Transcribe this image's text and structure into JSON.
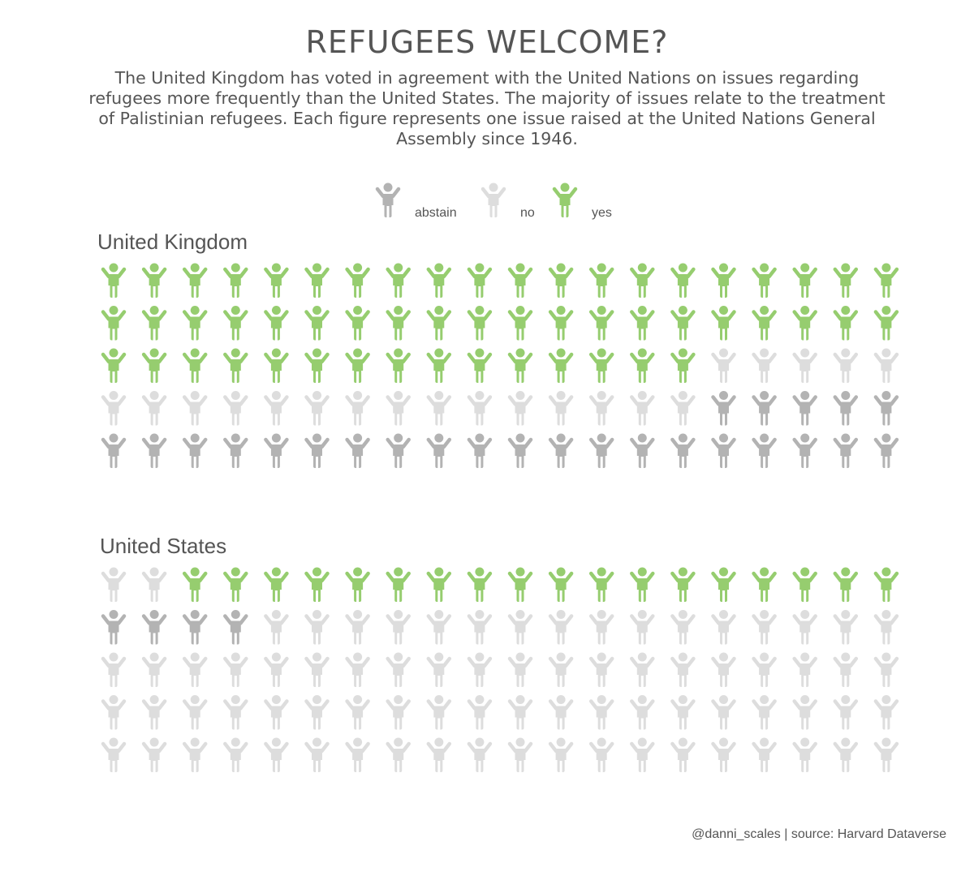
{
  "title": "REFUGEES WELCOME?",
  "subtitle": "The United Kingdom has voted in agreement with the United Nations on issues regarding refugees more frequently than the United States. The majority of issues relate to the treatment of Palistinian refugees. Each figure represents one issue raised at the United Nations General Assembly since 1946.",
  "legend": {
    "items": [
      {
        "label": "abstain",
        "color": "#b3b3b3",
        "icon": "person-arms-up-icon"
      },
      {
        "label": "no",
        "color": "#dddddd",
        "icon": "person-arms-up-icon"
      },
      {
        "label": "yes",
        "color": "#96cd6f",
        "icon": "person-arms-up-icon"
      }
    ]
  },
  "credit": "@danni_scales | source: Harvard Dataverse",
  "chart_data": [
    {
      "type": "pictogram",
      "title": "United Kingdom",
      "columns": 20,
      "fill_order": "top-left, row by row",
      "categories": [
        "yes",
        "no",
        "abstain"
      ],
      "values": [
        55,
        20,
        25
      ],
      "colors": {
        "yes": "#96cd6f",
        "no": "#dddddd",
        "abstain": "#b3b3b3"
      }
    },
    {
      "type": "pictogram",
      "title": "United States",
      "columns": 20,
      "fill_order": "top-left, row by row",
      "categories": [
        "no",
        "yes",
        "abstain",
        "no"
      ],
      "values": [
        2,
        18,
        4,
        76
      ],
      "colors": {
        "yes": "#96cd6f",
        "no": "#dddddd",
        "abstain": "#b3b3b3"
      }
    }
  ]
}
